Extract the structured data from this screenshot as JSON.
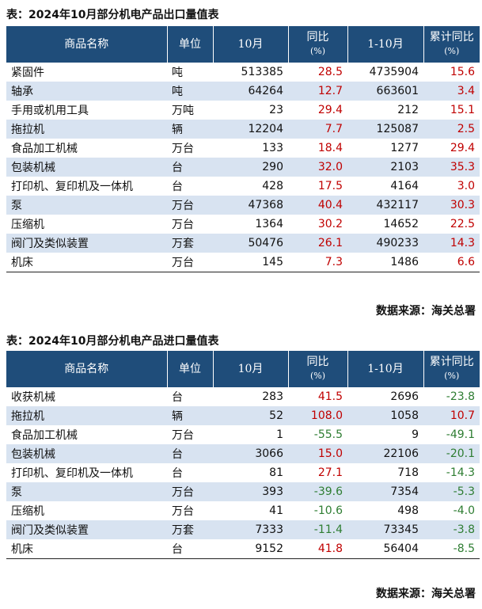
{
  "export_section": {
    "caption": "表：2024年10月部分机电产品出口量值表",
    "headers": {
      "name": "商品名称",
      "unit": "单位",
      "month": "10月",
      "yoy": "同比",
      "yoy_unit": "(%)",
      "ytd": "1-10月",
      "ytd_yoy": "累计同比",
      "ytd_yoy_unit": "(%)"
    },
    "rows": [
      {
        "name": "紧固件",
        "unit": "吨",
        "month": "513385",
        "yoy": "28.5",
        "ytd": "4735904",
        "ytd_yoy": "15.6"
      },
      {
        "name": "轴承",
        "unit": "吨",
        "month": "64264",
        "yoy": "12.7",
        "ytd": "663601",
        "ytd_yoy": "3.4"
      },
      {
        "name": "手用或机用工具",
        "unit": "万吨",
        "month": "23",
        "yoy": "29.4",
        "ytd": "212",
        "ytd_yoy": "15.1"
      },
      {
        "name": "拖拉机",
        "unit": "辆",
        "month": "12204",
        "yoy": "7.7",
        "ytd": "125087",
        "ytd_yoy": "2.5"
      },
      {
        "name": "食品加工机械",
        "unit": "万台",
        "month": "133",
        "yoy": "18.4",
        "ytd": "1277",
        "ytd_yoy": "29.4"
      },
      {
        "name": "包装机械",
        "unit": "台",
        "month": "290",
        "yoy": "32.0",
        "ytd": "2103",
        "ytd_yoy": "35.3"
      },
      {
        "name": "打印机、复印机及一体机",
        "unit": "台",
        "month": "428",
        "yoy": "17.5",
        "ytd": "4164",
        "ytd_yoy": "3.0"
      },
      {
        "name": "泵",
        "unit": "万台",
        "month": "47368",
        "yoy": "40.4",
        "ytd": "432117",
        "ytd_yoy": "30.3"
      },
      {
        "name": "压缩机",
        "unit": "万台",
        "month": "1364",
        "yoy": "30.2",
        "ytd": "14652",
        "ytd_yoy": "22.5"
      },
      {
        "name": "阀门及类似装置",
        "unit": "万套",
        "month": "50476",
        "yoy": "26.1",
        "ytd": "490233",
        "ytd_yoy": "14.3"
      },
      {
        "name": "机床",
        "unit": "万台",
        "month": "145",
        "yoy": "7.3",
        "ytd": "1486",
        "ytd_yoy": "6.6"
      }
    ],
    "source": "数据来源：海关总署"
  },
  "import_section": {
    "caption": "表：2024年10月部分机电产品进口量值表",
    "headers": {
      "name": "商品名称",
      "unit": "单位",
      "month": "10月",
      "yoy": "同比",
      "yoy_unit": "(%)",
      "ytd": "1-10月",
      "ytd_yoy": "累计同比",
      "ytd_yoy_unit": "(%)"
    },
    "rows": [
      {
        "name": "收获机械",
        "unit": "台",
        "month": "283",
        "yoy": "41.5",
        "ytd": "2696",
        "ytd_yoy": "-23.8"
      },
      {
        "name": "拖拉机",
        "unit": "辆",
        "month": "52",
        "yoy": "108.0",
        "ytd": "1058",
        "ytd_yoy": "10.7"
      },
      {
        "name": "食品加工机械",
        "unit": "万台",
        "month": "1",
        "yoy": "-55.5",
        "ytd": "9",
        "ytd_yoy": "-49.1"
      },
      {
        "name": "包装机械",
        "unit": "台",
        "month": "3066",
        "yoy": "15.0",
        "ytd": "22106",
        "ytd_yoy": "-20.1"
      },
      {
        "name": "打印机、复印机及一体机",
        "unit": "台",
        "month": "81",
        "yoy": "27.1",
        "ytd": "718",
        "ytd_yoy": "-14.3"
      },
      {
        "name": "泵",
        "unit": "万台",
        "month": "393",
        "yoy": "-39.6",
        "ytd": "7354",
        "ytd_yoy": "-5.3"
      },
      {
        "name": "压缩机",
        "unit": "万台",
        "month": "41",
        "yoy": "-10.6",
        "ytd": "498",
        "ytd_yoy": "-4.0"
      },
      {
        "name": "阀门及类似装置",
        "unit": "万套",
        "month": "7333",
        "yoy": "-11.4",
        "ytd": "73345",
        "ytd_yoy": "-3.8"
      },
      {
        "name": "机床",
        "unit": "台",
        "month": "9152",
        "yoy": "41.8",
        "ytd": "56404",
        "ytd_yoy": "-8.5"
      }
    ],
    "source": "数据来源：海关总署"
  },
  "colors": {
    "header_bg": "#1f4d7a",
    "row_shade": "#d8e3f1",
    "positive": "#c00000",
    "negative": "#2e7d32"
  }
}
